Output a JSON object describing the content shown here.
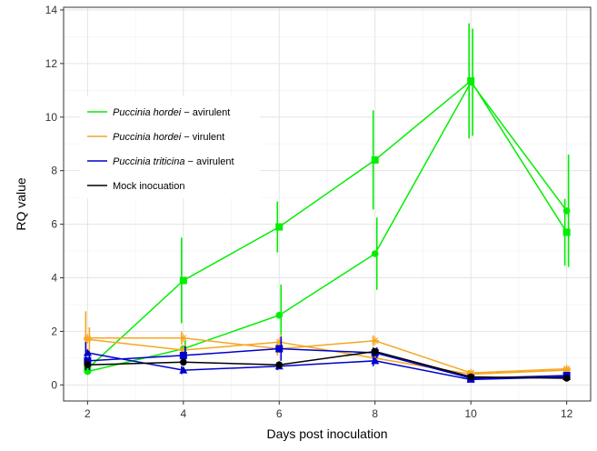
{
  "chart_data": {
    "type": "line",
    "title": "",
    "xlabel": "Days post inoculation",
    "ylabel": "RQ value",
    "xlim": [
      1.5,
      12.5
    ],
    "ylim": [
      -0.6,
      14.1
    ],
    "xticks": [
      2,
      4,
      6,
      8,
      10,
      12
    ],
    "yticks": [
      0,
      2,
      4,
      6,
      8,
      10,
      12,
      14
    ],
    "grid": true,
    "legend_position": "top-left",
    "series": [
      {
        "name": "Puccinia hordei",
        "name_suffix": " − avirulent",
        "color": "#00EE00",
        "lines": [
          {
            "marker": "square",
            "x": [
              2,
              4,
              6,
              8,
              10,
              12
            ],
            "y": [
              0.6,
              3.9,
              5.9,
              8.4,
              11.35,
              5.7
            ],
            "err": [
              0.1,
              1.6,
              0.95,
              1.85,
              2.15,
              1.25
            ]
          },
          {
            "marker": "circle",
            "x": [
              2,
              4,
              6,
              8,
              10,
              12
            ],
            "y": [
              0.5,
              1.35,
              2.6,
              4.9,
              11.3,
              6.5
            ],
            "err": [
              0.1,
              0.3,
              1.15,
              1.35,
              2.0,
              2.1
            ]
          }
        ]
      },
      {
        "name": "Puccinia hordei",
        "name_suffix": " − virulent",
        "color": "#F5A623",
        "lines": [
          {
            "marker": "star",
            "x": [
              2,
              4,
              6,
              8,
              10,
              12
            ],
            "y": [
              1.75,
              1.75,
              1.35,
              1.65,
              0.45,
              0.6
            ],
            "err": [
              1.0,
              0.25,
              0.25,
              0.2,
              0.1,
              0.1
            ]
          },
          {
            "marker": "star",
            "x": [
              2,
              4,
              6,
              8,
              10,
              12
            ],
            "y": [
              1.7,
              1.3,
              1.6,
              1.0,
              0.4,
              0.55
            ],
            "err": [
              0.45,
              0.2,
              0.3,
              0.15,
              0.1,
              0.1
            ]
          }
        ]
      },
      {
        "name": "Puccinia triticina",
        "name_suffix": " − avirulent",
        "color": "#0000CD",
        "lines": [
          {
            "marker": "triangle",
            "x": [
              2,
              4,
              6,
              8,
              10,
              12
            ],
            "y": [
              1.2,
              0.55,
              0.7,
              0.9,
              0.2,
              0.3
            ],
            "err": [
              0.4,
              0.15,
              0.15,
              0.2,
              0.05,
              0.1
            ]
          },
          {
            "marker": "square",
            "x": [
              2,
              4,
              6,
              8,
              10,
              12
            ],
            "y": [
              0.9,
              1.1,
              1.35,
              1.2,
              0.25,
              0.35
            ],
            "err": [
              0.35,
              0.35,
              0.45,
              0.2,
              0.1,
              0.1
            ]
          }
        ]
      },
      {
        "name": "Mock inocuation",
        "name_suffix": "",
        "color": "#000000",
        "lines": [
          {
            "marker": "circle",
            "x": [
              2,
              4,
              6,
              8,
              10,
              12
            ],
            "y": [
              0.75,
              0.85,
              0.75,
              1.25,
              0.3,
              0.25
            ],
            "err": [
              0.2,
              0.1,
              0.1,
              0.15,
              0.05,
              0.05
            ]
          }
        ]
      }
    ]
  }
}
